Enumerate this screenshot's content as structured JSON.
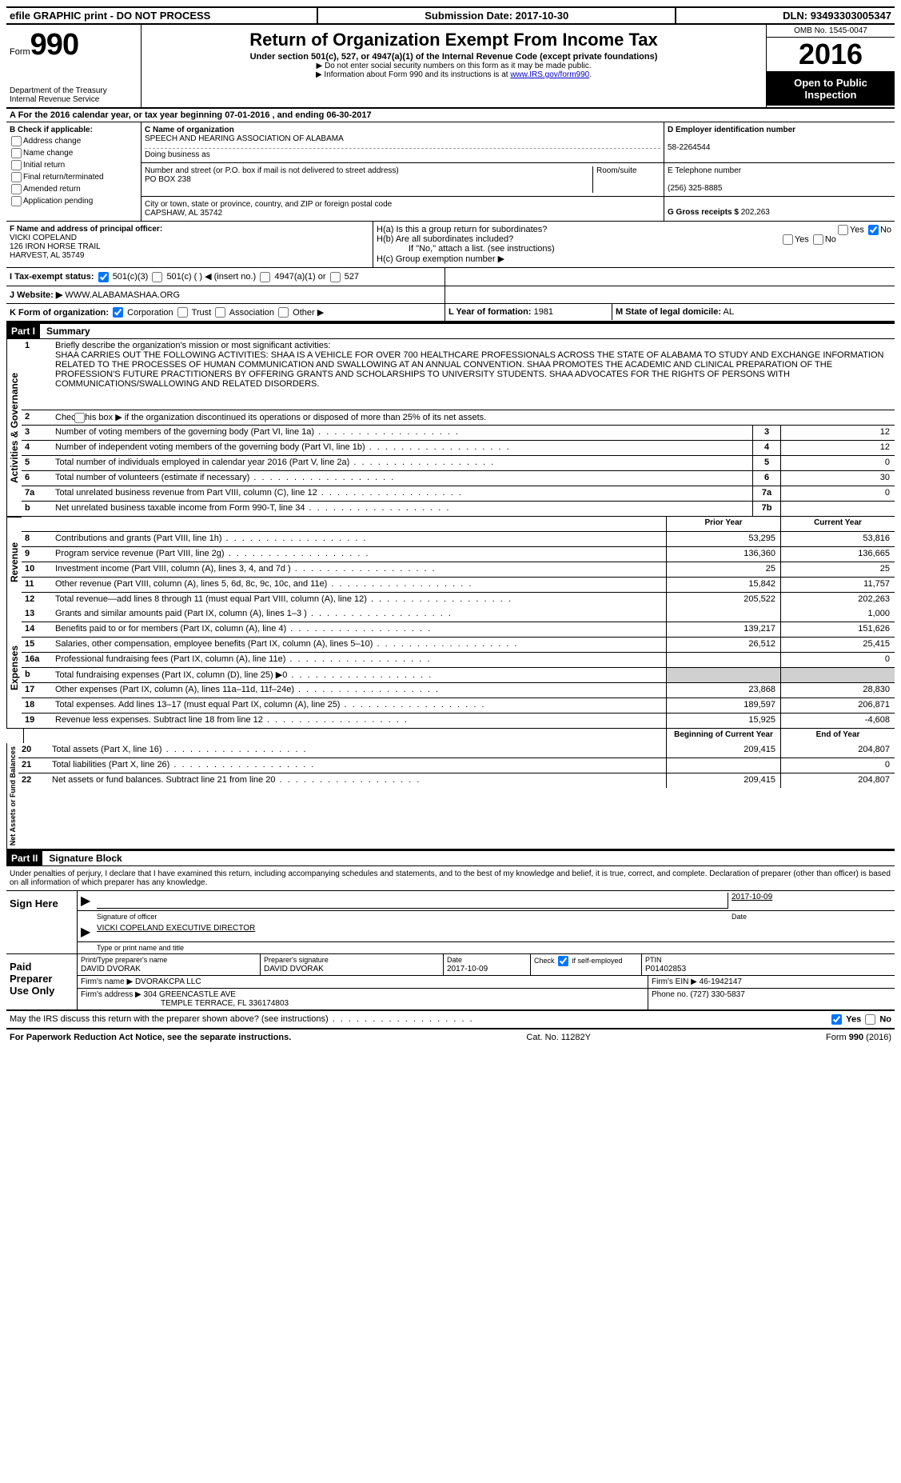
{
  "topbar": {
    "efile": "efile GRAPHIC print - DO NOT PROCESS",
    "submission": "Submission Date: 2017-10-30",
    "dln": "DLN: 93493303005347"
  },
  "header": {
    "form_label": "Form",
    "form_number": "990",
    "dept": "Department of the Treasury",
    "irs": "Internal Revenue Service",
    "title": "Return of Organization Exempt From Income Tax",
    "sub": "Under section 501(c), 527, or 4947(a)(1) of the Internal Revenue Code (except private foundations)",
    "note1": "▶ Do not enter social security numbers on this form as it may be made public.",
    "note2": "▶ Information about Form 990 and its instructions is at ",
    "link": "www.IRS.gov/form990",
    "omb": "OMB No. 1545-0047",
    "year": "2016",
    "inspection": "Open to Public Inspection"
  },
  "sectionA": "A  For the 2016 calendar year, or tax year beginning 07-01-2016   , and ending 06-30-2017",
  "boxB": {
    "header": "B Check if applicable:",
    "items": [
      "Address change",
      "Name change",
      "Initial return",
      "Final return/terminated",
      "Amended return",
      "Application pending"
    ]
  },
  "boxC": {
    "label": "C Name of organization",
    "name": "SPEECH AND HEARING ASSOCIATION OF ALABAMA",
    "dba_label": "Doing business as",
    "street_label": "Number and street (or P.O. box if mail is not delivered to street address)",
    "room_label": "Room/suite",
    "street": "PO BOX 238",
    "city_label": "City or town, state or province, country, and ZIP or foreign postal code",
    "city": "CAPSHAW, AL  35742"
  },
  "boxD": {
    "label": "D Employer identification number",
    "ein": "58-2264544"
  },
  "boxE": {
    "label": "E Telephone number",
    "phone": "(256) 325-8885"
  },
  "boxG": {
    "label": "G Gross receipts $",
    "amount": "202,263"
  },
  "boxF": {
    "label": "F Name and address of principal officer:",
    "name": "VICKI COPELAND",
    "addr1": "126 IRON HORSE TRAIL",
    "addr2": "HARVEST, AL  35749"
  },
  "boxH": {
    "ha": "H(a)  Is this a group return for subordinates?",
    "hb": "H(b)  Are all subordinates included?",
    "hb_note": "If \"No,\" attach a list. (see instructions)",
    "hc": "H(c)  Group exemption number ▶"
  },
  "boxI": {
    "label": "I  Tax-exempt status:",
    "opts": [
      "501(c)(3)",
      "501(c) (",
      ") ◀ (insert no.)",
      "4947(a)(1) or",
      "527"
    ]
  },
  "boxJ": {
    "label": "J  Website: ▶",
    "url": "WWW.ALABAMASHAA.ORG"
  },
  "boxK": {
    "label": "K Form of organization:",
    "opts": [
      "Corporation",
      "Trust",
      "Association",
      "Other ▶"
    ]
  },
  "boxL": {
    "label": "L Year of formation:",
    "val": "1981"
  },
  "boxM": {
    "label": "M State of legal domicile:",
    "val": "AL"
  },
  "part1": {
    "header": "Part I",
    "title": "Summary",
    "mission_label": "Briefly describe the organization's mission or most significant activities:",
    "mission": "SHAA CARRIES OUT THE FOLLOWING ACTIVITIES: SHAA IS A VEHICLE FOR OVER 700 HEALTHCARE PROFESSIONALS ACROSS THE STATE OF ALABAMA TO STUDY AND EXCHANGE INFORMATION RELATED TO THE PROCESSES OF HUMAN COMMUNICATION AND SWALLOWING AT AN ANNUAL CONVENTION. SHAA PROMOTES THE ACADEMIC AND CLINICAL PREPARATION OF THE PROFESSION'S FUTURE PRACTITIONERS BY OFFERING GRANTS AND SCHOLARSHIPS TO UNIVERSITY STUDENTS. SHAA ADVOCATES FOR THE RIGHTS OF PERSONS WITH COMMUNICATIONS/SWALLOWING AND RELATED DISORDERS.",
    "line2": "Check this box ▶      if the organization discontinued its operations or disposed of more than 25% of its net assets.",
    "rows_gov": [
      {
        "num": "3",
        "text": "Number of voting members of the governing body (Part VI, line 1a)",
        "box": "3",
        "val": "12"
      },
      {
        "num": "4",
        "text": "Number of independent voting members of the governing body (Part VI, line 1b)",
        "box": "4",
        "val": "12"
      },
      {
        "num": "5",
        "text": "Total number of individuals employed in calendar year 2016 (Part V, line 2a)",
        "box": "5",
        "val": "0"
      },
      {
        "num": "6",
        "text": "Total number of volunteers (estimate if necessary)",
        "box": "6",
        "val": "30"
      },
      {
        "num": "7a",
        "text": "Total unrelated business revenue from Part VIII, column (C), line 12",
        "box": "7a",
        "val": "0"
      },
      {
        "num": "b",
        "text": "Net unrelated business taxable income from Form 990-T, line 34",
        "box": "7b",
        "val": ""
      }
    ],
    "col_prior": "Prior Year",
    "col_current": "Current Year",
    "rows_rev": [
      {
        "num": "8",
        "text": "Contributions and grants (Part VIII, line 1h)",
        "prior": "53,295",
        "current": "53,816"
      },
      {
        "num": "9",
        "text": "Program service revenue (Part VIII, line 2g)",
        "prior": "136,360",
        "current": "136,665"
      },
      {
        "num": "10",
        "text": "Investment income (Part VIII, column (A), lines 3, 4, and 7d )",
        "prior": "25",
        "current": "25"
      },
      {
        "num": "11",
        "text": "Other revenue (Part VIII, column (A), lines 5, 6d, 8c, 9c, 10c, and 11e)",
        "prior": "15,842",
        "current": "11,757"
      },
      {
        "num": "12",
        "text": "Total revenue—add lines 8 through 11 (must equal Part VIII, column (A), line 12)",
        "prior": "205,522",
        "current": "202,263"
      }
    ],
    "rows_exp": [
      {
        "num": "13",
        "text": "Grants and similar amounts paid (Part IX, column (A), lines 1–3 )",
        "prior": "",
        "current": "1,000"
      },
      {
        "num": "14",
        "text": "Benefits paid to or for members (Part IX, column (A), line 4)",
        "prior": "139,217",
        "current": "151,626"
      },
      {
        "num": "15",
        "text": "Salaries, other compensation, employee benefits (Part IX, column (A), lines 5–10)",
        "prior": "26,512",
        "current": "25,415"
      },
      {
        "num": "16a",
        "text": "Professional fundraising fees (Part IX, column (A), line 11e)",
        "prior": "",
        "current": "0"
      },
      {
        "num": "b",
        "text": "Total fundraising expenses (Part IX, column (D), line 25) ▶0",
        "prior": "__gray__",
        "current": "__gray__"
      },
      {
        "num": "17",
        "text": "Other expenses (Part IX, column (A), lines 11a–11d, 11f–24e)",
        "prior": "23,868",
        "current": "28,830"
      },
      {
        "num": "18",
        "text": "Total expenses. Add lines 13–17 (must equal Part IX, column (A), line 25)",
        "prior": "189,597",
        "current": "206,871"
      },
      {
        "num": "19",
        "text": "Revenue less expenses. Subtract line 18 from line 12",
        "prior": "15,925",
        "current": "-4,608"
      }
    ],
    "col_beg": "Beginning of Current Year",
    "col_end": "End of Year",
    "rows_net": [
      {
        "num": "20",
        "text": "Total assets (Part X, line 16)",
        "prior": "209,415",
        "current": "204,807"
      },
      {
        "num": "21",
        "text": "Total liabilities (Part X, line 26)",
        "prior": "",
        "current": "0"
      },
      {
        "num": "22",
        "text": "Net assets or fund balances. Subtract line 21 from line 20",
        "prior": "209,415",
        "current": "204,807"
      }
    ],
    "vlabels": {
      "gov": "Activities & Governance",
      "rev": "Revenue",
      "exp": "Expenses",
      "net": "Net Assets or Fund Balances"
    }
  },
  "part2": {
    "header": "Part II",
    "title": "Signature Block",
    "perjury": "Under penalties of perjury, I declare that I have examined this return, including accompanying schedules and statements, and to the best of my knowledge and belief, it is true, correct, and complete. Declaration of preparer (other than officer) is based on all information of which preparer has any knowledge.",
    "sign_here": "Sign Here",
    "sig_officer": "Signature of officer",
    "sig_date": "2017-10-09",
    "date_label": "Date",
    "officer_name": "VICKI COPELAND  EXECUTIVE DIRECTOR",
    "type_name": "Type or print name and title",
    "paid": "Paid Preparer Use Only",
    "prep_name_label": "Print/Type preparer's name",
    "prep_name": "DAVID DVORAK",
    "prep_sig_label": "Preparer's signature",
    "prep_sig": "DAVID DVORAK",
    "prep_date": "2017-10-09",
    "self_emp": "Check      if self-employed",
    "ptin_label": "PTIN",
    "ptin": "P01402853",
    "firm_name_label": "Firm's name     ▶",
    "firm_name": "DVORAKCPA LLC",
    "firm_ein_label": "Firm's EIN ▶",
    "firm_ein": "46-1942147",
    "firm_addr_label": "Firm's address ▶",
    "firm_addr": "304 GREENCASTLE AVE",
    "firm_addr2": "TEMPLE TERRACE, FL  336174803",
    "firm_phone_label": "Phone no.",
    "firm_phone": "(727) 330-5837"
  },
  "discuss": "May the IRS discuss this return with the preparer shown above? (see instructions)",
  "footer": {
    "left": "For Paperwork Reduction Act Notice, see the separate instructions.",
    "mid": "Cat. No. 11282Y",
    "right": "Form 990 (2016)"
  }
}
